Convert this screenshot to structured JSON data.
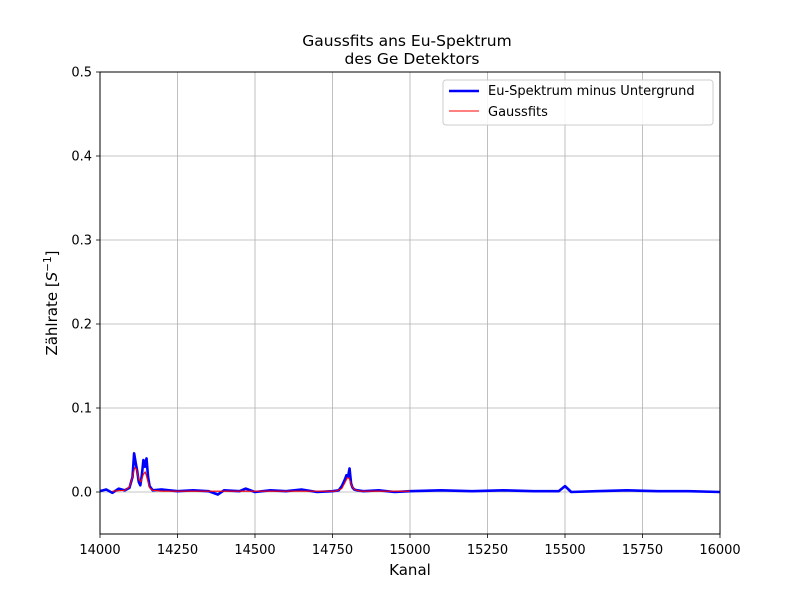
{
  "chart_data": {
    "type": "line",
    "title_line1": "Gaussfits ans Eu-Spektrum",
    "title_line2": "des Ge Detektors",
    "xlabel": "Kanal",
    "ylabel_prefix": "Zählrate [",
    "ylabel_base": "S",
    "ylabel_sup": "−1",
    "ylabel_suffix": "]",
    "xlim": [
      14000,
      16000
    ],
    "ylim": [
      -0.05,
      0.5
    ],
    "xticks": [
      14000,
      14250,
      14500,
      14750,
      15000,
      15250,
      15500,
      15750,
      16000
    ],
    "xtick_labels": [
      "14000",
      "14250",
      "14500",
      "14750",
      "15000",
      "15250",
      "15500",
      "15750",
      "16000"
    ],
    "yticks": [
      0.0,
      0.1,
      0.2,
      0.3,
      0.4,
      0.5
    ],
    "ytick_labels": [
      "0.0",
      "0.1",
      "0.2",
      "0.3",
      "0.4",
      "0.5"
    ],
    "grid": true,
    "legend_position": "top-right",
    "series": [
      {
        "name": "Eu-Spektrum minus Untergrund",
        "color": "#0000ff",
        "style": "thick-line",
        "x": [
          14000,
          14020,
          14040,
          14060,
          14080,
          14095,
          14105,
          14110,
          14115,
          14120,
          14125,
          14130,
          14135,
          14140,
          14145,
          14150,
          14155,
          14160,
          14170,
          14200,
          14250,
          14300,
          14350,
          14380,
          14400,
          14450,
          14470,
          14500,
          14550,
          14600,
          14650,
          14700,
          14750,
          14770,
          14780,
          14790,
          14795,
          14800,
          14805,
          14810,
          14815,
          14820,
          14830,
          14850,
          14900,
          14950,
          15000,
          15100,
          15200,
          15300,
          15400,
          15480,
          15500,
          15520,
          15600,
          15700,
          15800,
          15900,
          16000
        ],
        "y": [
          0.001,
          0.003,
          -0.001,
          0.004,
          0.002,
          0.005,
          0.018,
          0.046,
          0.035,
          0.025,
          0.012,
          0.008,
          0.02,
          0.038,
          0.03,
          0.04,
          0.018,
          0.007,
          0.002,
          0.003,
          0.001,
          0.002,
          0.001,
          -0.003,
          0.002,
          0.001,
          0.004,
          0.0,
          0.002,
          0.001,
          0.003,
          0.0,
          0.001,
          0.002,
          0.007,
          0.015,
          0.02,
          0.018,
          0.028,
          0.01,
          0.005,
          0.003,
          0.002,
          0.001,
          0.002,
          0.0,
          0.001,
          0.002,
          0.001,
          0.002,
          0.001,
          0.001,
          0.007,
          0.0,
          0.001,
          0.002,
          0.001,
          0.001,
          0.0
        ]
      },
      {
        "name": "Gaussfits",
        "color": "#ff0000",
        "style": "thin-line",
        "x": [
          14040,
          14080,
          14095,
          14105,
          14112,
          14118,
          14125,
          14132,
          14140,
          14146,
          14152,
          14160,
          14170,
          14200,
          14400,
          14600,
          14760,
          14780,
          14790,
          14798,
          14804,
          14810,
          14820,
          14840,
          15000
        ],
        "y": [
          0.001,
          0.002,
          0.006,
          0.018,
          0.029,
          0.027,
          0.015,
          0.012,
          0.021,
          0.024,
          0.016,
          0.005,
          0.002,
          0.001,
          0.001,
          0.001,
          0.001,
          0.004,
          0.011,
          0.017,
          0.016,
          0.009,
          0.003,
          0.001,
          0.001
        ]
      }
    ]
  }
}
